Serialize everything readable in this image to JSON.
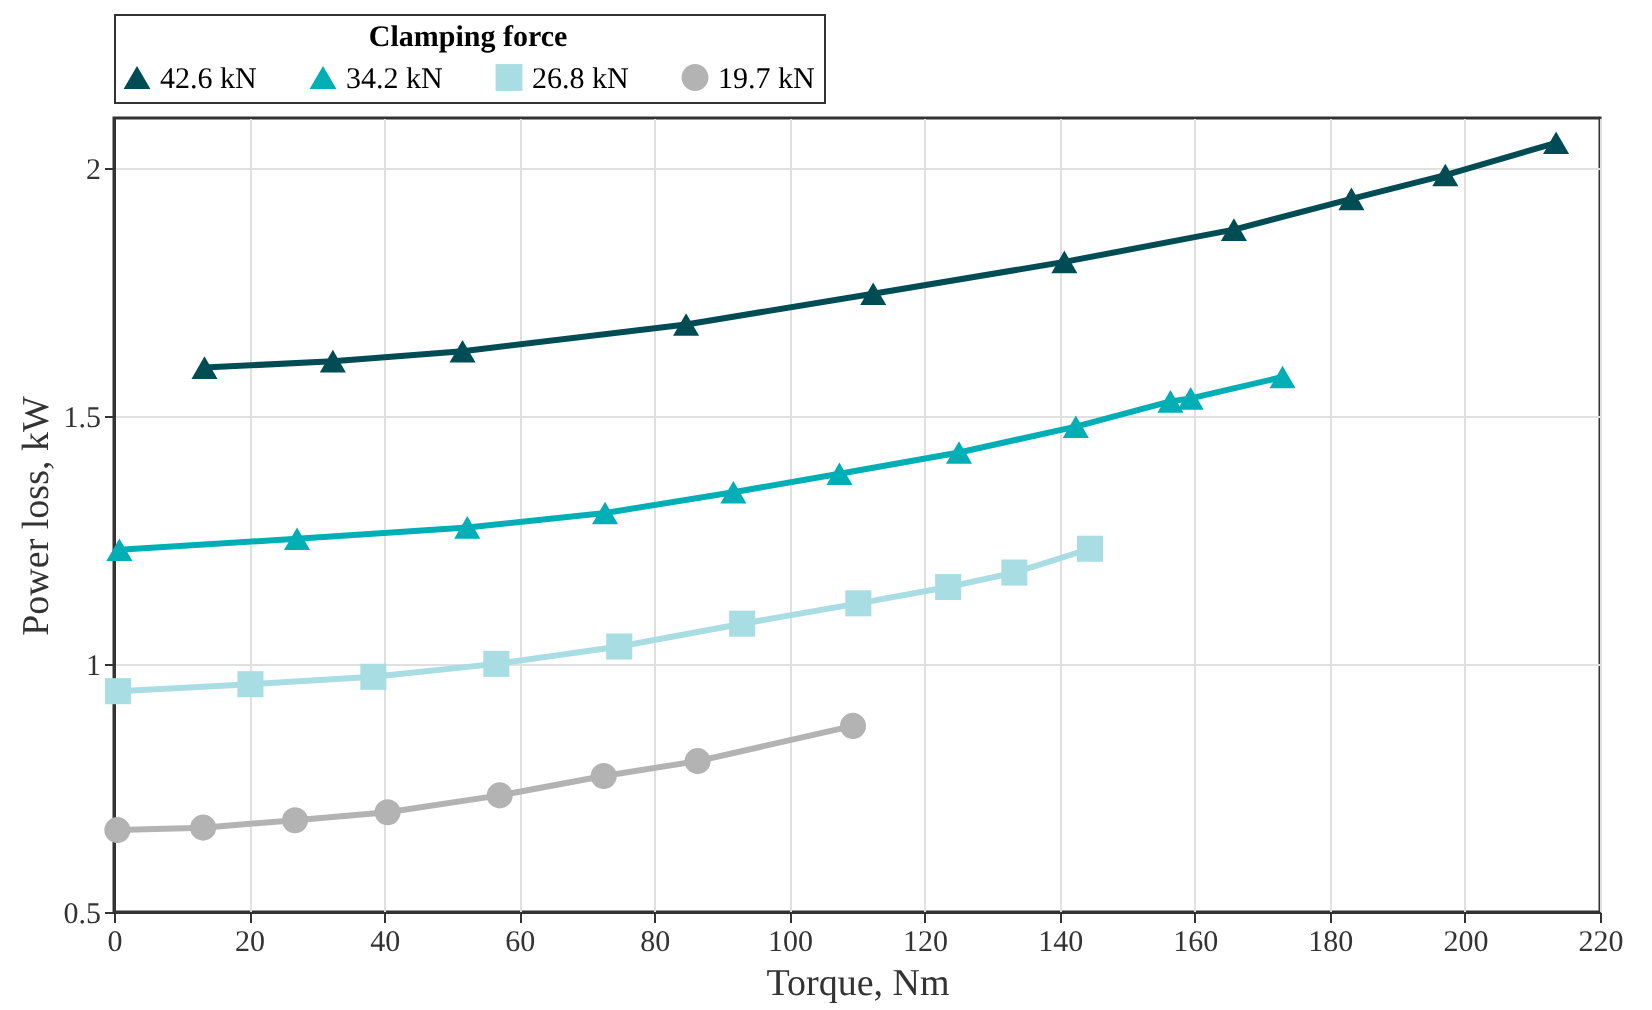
{
  "chart_data": {
    "type": "line",
    "xlabel": "Torque, Nm",
    "ylabel": "Power loss, kW",
    "legend_title": "Clamping force",
    "legend": "top",
    "grid": true,
    "line_style": "solid",
    "xlim": [
      0,
      220
    ],
    "ylim": [
      0.5,
      2.1
    ],
    "xticks": [
      0,
      20,
      40,
      60,
      80,
      100,
      120,
      140,
      160,
      180,
      200,
      220
    ],
    "yticks": [
      0.5,
      1,
      1.5,
      2
    ],
    "series": [
      {
        "name": "42.6 kN",
        "color": "#004c54",
        "marker": "triangle",
        "x": [
          13.4,
          32.4,
          51.6,
          84.7,
          112.4,
          140.7,
          165.8,
          183.2,
          197.1,
          213.5
        ],
        "values": [
          1.597,
          1.61,
          1.63,
          1.684,
          1.746,
          1.81,
          1.875,
          1.937,
          1.985,
          2.05
        ]
      },
      {
        "name": "34.2 kN",
        "color": "#00aeb5",
        "marker": "triangle",
        "x": [
          0.8,
          27.1,
          52.3,
          72.7,
          91.7,
          107.4,
          125.1,
          142.4,
          156.4,
          159.4,
          173
        ],
        "values": [
          1.23,
          1.252,
          1.275,
          1.304,
          1.346,
          1.383,
          1.426,
          1.478,
          1.529,
          1.535,
          1.578
        ]
      },
      {
        "name": "26.8 kN",
        "color": "#a8dde3",
        "marker": "square",
        "x": [
          0.6,
          20.2,
          38.4,
          56.6,
          74.8,
          93,
          110.2,
          123.5,
          133.3,
          144.5
        ],
        "values": [
          0.945,
          0.959,
          0.974,
          1.0,
          1.035,
          1.081,
          1.122,
          1.155,
          1.184,
          1.232
        ]
      },
      {
        "name": "19.7 kN",
        "color": "#b3b3b3",
        "marker": "circle",
        "x": [
          0.5,
          13.2,
          26.8,
          40.5,
          57.1,
          72.5,
          86.4,
          109.4
        ],
        "values": [
          0.665,
          0.67,
          0.685,
          0.701,
          0.735,
          0.774,
          0.804,
          0.875
        ]
      }
    ]
  }
}
